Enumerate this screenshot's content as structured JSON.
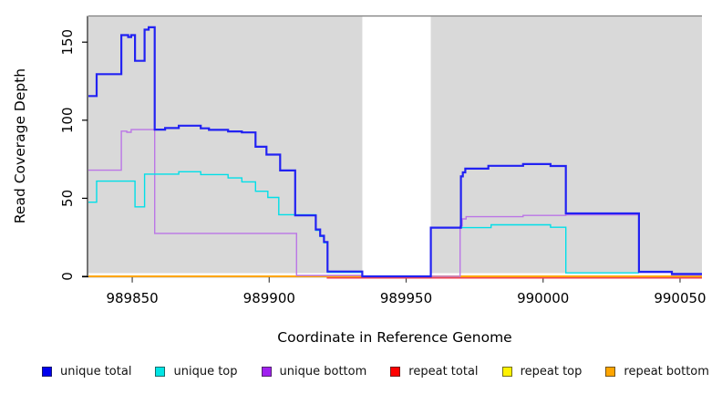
{
  "chart_data": {
    "type": "line",
    "subtype": "step",
    "title": "",
    "xlabel": "Coordinate in Reference Genome",
    "ylabel": "Read Coverage Depth",
    "xlim": [
      989834,
      990058
    ],
    "ylim": [
      0,
      167
    ],
    "xticks": [
      989850,
      989900,
      989950,
      990000,
      990050
    ],
    "yticks": [
      0,
      50,
      100,
      150
    ],
    "grid": false,
    "panel_bg": "#d9d9d9",
    "panel_border": "#7f7f7f",
    "axis_color": "#000000",
    "gap_region": {
      "from": 989934,
      "to": 989959,
      "color": "#ffffff"
    },
    "legend_position": "bottom",
    "draw_order": [
      "repeat top",
      "repeat total",
      "repeat bottom",
      "unique bottom",
      "unique top",
      "unique total"
    ],
    "series": [
      {
        "name": "unique total",
        "color": "#2222f2",
        "width": 2.2,
        "dy": 0,
        "steps": [
          [
            989834,
            115.5
          ],
          [
            989837,
            129.5
          ],
          [
            989846,
            154.5
          ],
          [
            989848.5,
            153.3
          ],
          [
            989849.6,
            154.5
          ],
          [
            989851,
            138
          ],
          [
            989854.5,
            158
          ],
          [
            989856,
            159.5
          ],
          [
            989858.2,
            94
          ],
          [
            989862,
            95
          ],
          [
            989867,
            96.5
          ],
          [
            989875,
            94.8
          ],
          [
            989878,
            93.8
          ],
          [
            989885,
            92.8
          ],
          [
            989890,
            92.2
          ],
          [
            989895,
            83
          ],
          [
            989899,
            78
          ],
          [
            989904,
            67.8
          ],
          [
            989909.5,
            39
          ],
          [
            989917,
            30
          ],
          [
            989918.6,
            26
          ],
          [
            989920,
            22
          ],
          [
            989921.3,
            3.1
          ],
          [
            989934,
            0
          ],
          [
            989959,
            31.2
          ],
          [
            989970,
            64
          ],
          [
            989970.7,
            66.6
          ],
          [
            989971.6,
            69
          ],
          [
            989980,
            70.8
          ],
          [
            989992.7,
            71.9
          ],
          [
            990002.7,
            70.7
          ],
          [
            990008.3,
            40.3
          ],
          [
            990035,
            2.9
          ],
          [
            990047,
            1.5
          ],
          [
            990058,
            1.5
          ]
        ]
      },
      {
        "name": "unique top",
        "color": "#00dfe8",
        "width": 1.4,
        "dy": 0,
        "steps": [
          [
            989834,
            47.5
          ],
          [
            989837,
            61
          ],
          [
            989851,
            44.5
          ],
          [
            989854.5,
            65.5
          ],
          [
            989867,
            67
          ],
          [
            989875,
            65.2
          ],
          [
            989885,
            63
          ],
          [
            989890,
            60.5
          ],
          [
            989895,
            54.5
          ],
          [
            989899.5,
            50.5
          ],
          [
            989903.5,
            39.5
          ],
          [
            989917,
            29.5
          ],
          [
            989918.6,
            25.5
          ],
          [
            989920,
            21.5
          ],
          [
            989921.3,
            2.6
          ],
          [
            989934,
            null
          ],
          [
            989959,
            31.2
          ],
          [
            989981,
            33
          ],
          [
            990002.7,
            31.4
          ],
          [
            990008.3,
            2.2
          ],
          [
            990035,
            null
          ]
        ]
      },
      {
        "name": "unique bottom",
        "color": "#bb76e6",
        "width": 1.4,
        "dy": 0,
        "steps": [
          [
            989834,
            68
          ],
          [
            989846,
            93
          ],
          [
            989848,
            92.3
          ],
          [
            989849.6,
            94
          ],
          [
            989858.2,
            27.5
          ],
          [
            989910,
            0.6
          ],
          [
            989934,
            null
          ],
          [
            989959,
            0
          ],
          [
            989969.7,
            32.3
          ],
          [
            989970.5,
            36.8
          ],
          [
            989971.9,
            38.2
          ],
          [
            989992.7,
            39
          ],
          [
            990008.3,
            39.4
          ],
          [
            990035,
            2.5
          ],
          [
            990047,
            0.9
          ],
          [
            990058,
            0.9
          ]
        ]
      },
      {
        "name": "repeat total",
        "color": "#ee4152",
        "width": 1.6,
        "dy": 1.7,
        "steps": [
          [
            989921,
            0
          ],
          [
            990058,
            0
          ]
        ]
      },
      {
        "name": "repeat top",
        "color": "#f5e400",
        "width": 1.2,
        "dy": 0,
        "steps": [
          [
            989834,
            0
          ],
          [
            990058,
            0
          ]
        ]
      },
      {
        "name": "repeat bottom",
        "color": "#ffa500",
        "width": 1.9,
        "dy": 0,
        "steps": [
          [
            989834,
            0
          ],
          [
            989934,
            null
          ],
          [
            989959,
            0
          ],
          [
            990058,
            0
          ]
        ]
      }
    ],
    "legend": [
      {
        "label": "unique total",
        "color": "#0000ee"
      },
      {
        "label": "unique top",
        "color": "#00e5e5"
      },
      {
        "label": "unique bottom",
        "color": "#a020f0"
      },
      {
        "label": "repeat total",
        "color": "#ff0000"
      },
      {
        "label": "repeat top",
        "color": "#fff200"
      },
      {
        "label": "repeat bottom",
        "color": "#ffa500"
      }
    ]
  }
}
